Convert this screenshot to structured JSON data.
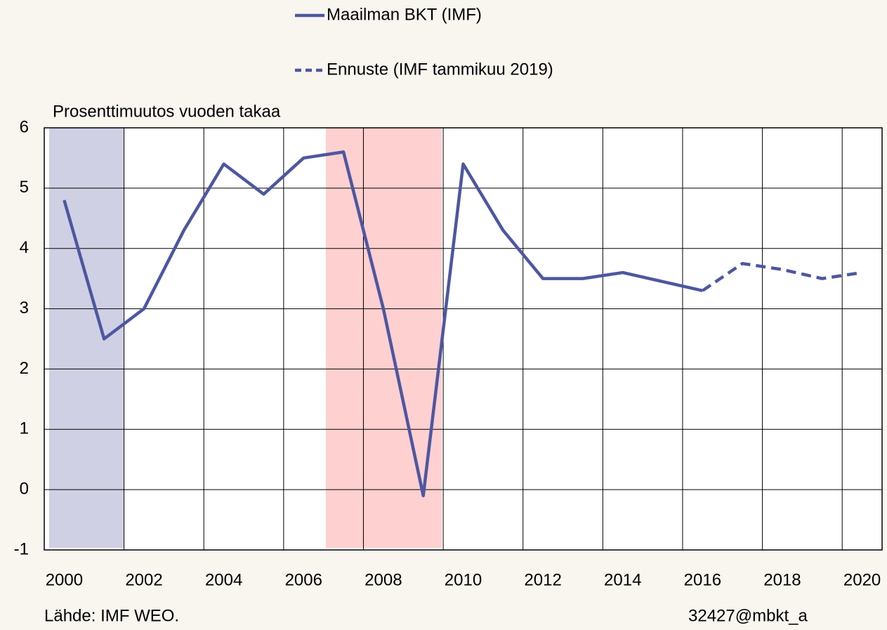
{
  "chart_data": {
    "type": "line",
    "y_label": "Prosenttimuutos vuoden takaa",
    "source": "Lähde: IMF WEO.",
    "code": "32427@mbkt_a",
    "categories": [
      "2000",
      null,
      "2002",
      null,
      "2004",
      null,
      "2006",
      null,
      "2008",
      null,
      "2010",
      null,
      "2012",
      null,
      "2014",
      null,
      "2016",
      null,
      "2018",
      null,
      "2020"
    ],
    "series": [
      {
        "name": "Maailman BKT (IMF)",
        "color": "#4d57a0",
        "style": "solid",
        "values": [
          4.8,
          2.5,
          3.0,
          4.3,
          5.4,
          4.9,
          5.5,
          5.6,
          3.0,
          -0.1,
          5.4,
          4.3,
          3.5,
          3.5,
          3.6,
          3.45,
          3.3,
          null,
          null,
          null,
          null
        ]
      },
      {
        "name": "Ennuste (IMF tammikuu 2019)",
        "color": "#4d57a0",
        "style": "dashed",
        "values": [
          null,
          null,
          null,
          null,
          null,
          null,
          null,
          null,
          null,
          null,
          null,
          null,
          null,
          null,
          null,
          null,
          3.3,
          3.75,
          3.65,
          3.5,
          3.6
        ]
      }
    ],
    "ylim": [
      -1,
      6
    ],
    "yticks": [
      -1,
      0,
      1,
      2,
      3,
      4,
      5,
      6
    ],
    "grid": true
  }
}
